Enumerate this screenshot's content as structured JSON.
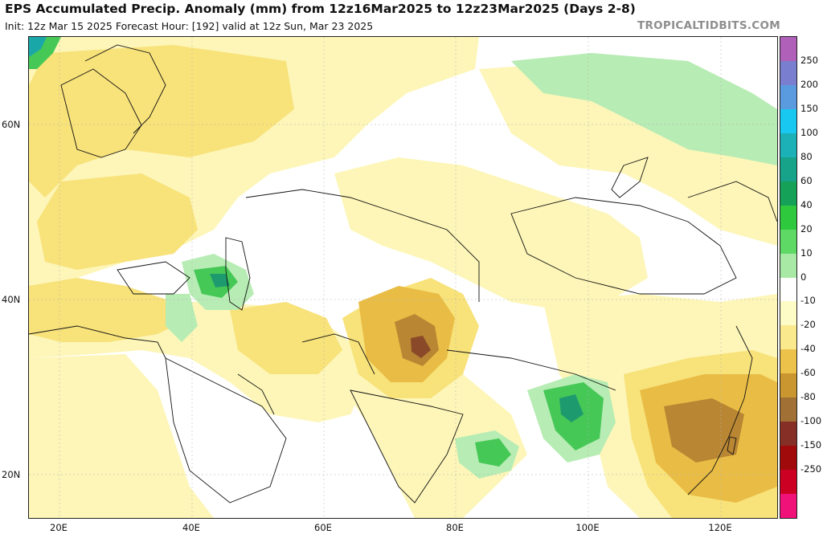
{
  "header": {
    "title": "EPS Accumulated Precip. Anomaly (mm) from 12z16Mar2025 to 12z23Mar2025 (Days 2-8)",
    "subtitle": "Init: 12z Mar 15 2025   Forecast Hour: [192]   valid at 12z Sun, Mar 23 2025",
    "brand": "TROPICALTIDBITS.COM"
  },
  "axes": {
    "lat_labels": [
      "60N",
      "40N",
      "20N"
    ],
    "lon_labels": [
      "20E",
      "40E",
      "60E",
      "80E",
      "100E",
      "120E"
    ]
  },
  "colorbar": {
    "labels": [
      "250",
      "200",
      "150",
      "100",
      "80",
      "60",
      "40",
      "20",
      "10",
      "0",
      "-10",
      "-20",
      "-40",
      "-60",
      "-80",
      "-100",
      "-150",
      "-250"
    ],
    "colors": [
      "#b060b8",
      "#7a7ecf",
      "#5a9be0",
      "#18c8f0",
      "#1bb1b7",
      "#17a38a",
      "#16a158",
      "#2fc93d",
      "#5ed965",
      "#a9e9a6",
      "#ffffff",
      "#fdfbc6",
      "#fbe98e",
      "#ecc24a",
      "#c9962f",
      "#a07035",
      "#862f26",
      "#a00a0a",
      "#cc0022",
      "#f01278"
    ]
  },
  "map_colors": {
    "light_yellow": "#fdf6b8",
    "yellow": "#f8e27a",
    "gold": "#e9bd45",
    "brown": "#b98633",
    "dark_brown": "#8a4a2a",
    "light_green": "#b7ecb4",
    "green": "#46c857",
    "dark_green": "#1e9a6f",
    "teal": "#1aa7a8",
    "border": "#111111"
  }
}
